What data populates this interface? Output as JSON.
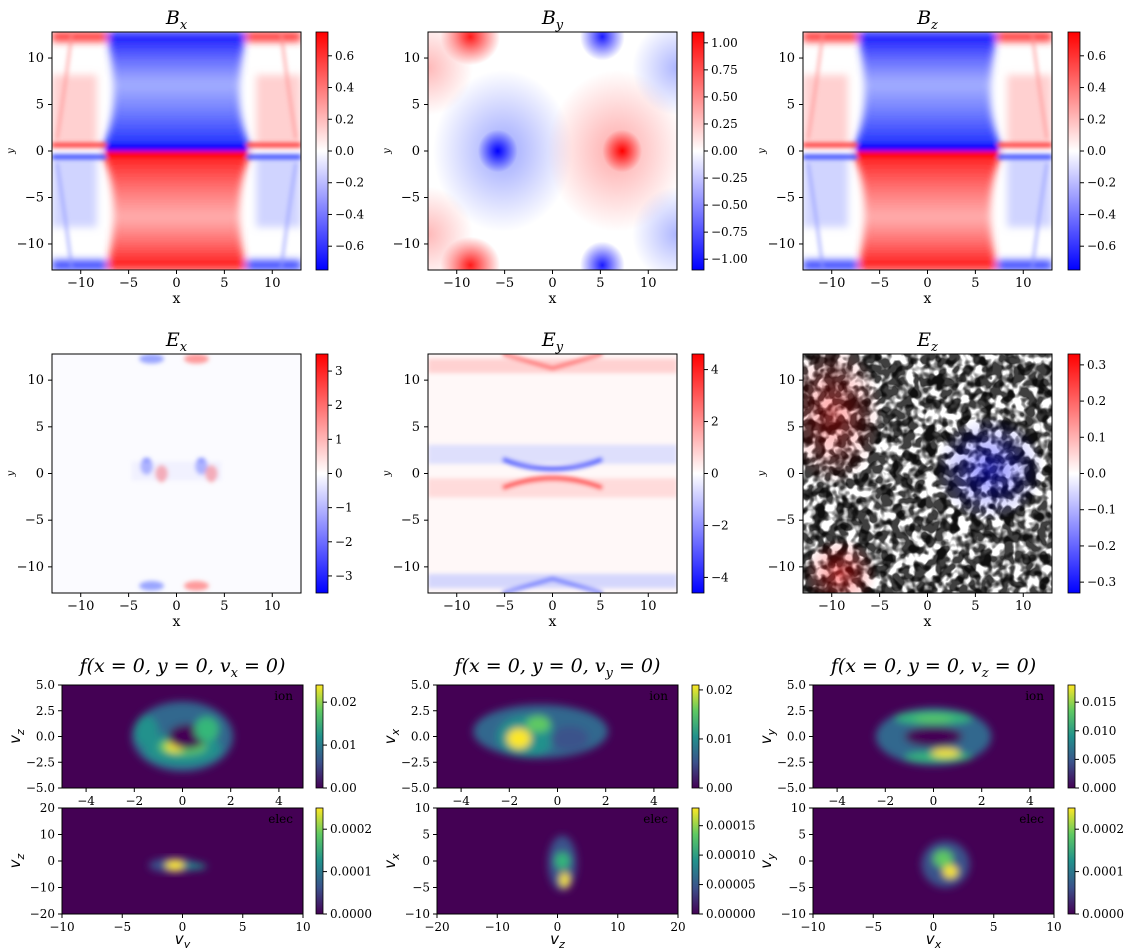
{
  "chart_data": [
    {
      "type": "heatmap",
      "title": "B_x",
      "title_display": "B",
      "title_sub": "x",
      "xlabel": "x",
      "ylabel": "y",
      "xlim": [
        -13,
        13
      ],
      "ylim": [
        -12.8,
        12.8
      ],
      "xticks": [
        "−10",
        "−5",
        "0",
        "5",
        "10"
      ],
      "yticks": [
        "10",
        "5",
        "0",
        "−5",
        "−10"
      ],
      "colorbar_ticks": [
        "0.6",
        "0.4",
        "0.2",
        "0.0",
        "−0.2",
        "−0.4",
        "−0.6"
      ],
      "vmin": -0.75,
      "vmax": 0.75,
      "colormap": "bwr"
    },
    {
      "type": "heatmap",
      "title": "B_y",
      "title_display": "B",
      "title_sub": "y",
      "xlabel": "x",
      "ylabel": "y",
      "xlim": [
        -13,
        13
      ],
      "ylim": [
        -12.8,
        12.8
      ],
      "xticks": [
        "−10",
        "−5",
        "0",
        "5",
        "10"
      ],
      "yticks": [
        "10",
        "5",
        "0",
        "−5",
        "−10"
      ],
      "colorbar_ticks": [
        "1.00",
        "0.75",
        "0.50",
        "0.25",
        "0.00",
        "−0.25",
        "−0.50",
        "−0.75",
        "−1.00"
      ],
      "vmin": -1.1,
      "vmax": 1.1,
      "colormap": "bwr"
    },
    {
      "type": "heatmap",
      "title": "B_z",
      "title_display": "B",
      "title_sub": "z",
      "xlabel": "x",
      "ylabel": "y",
      "xlim": [
        -13,
        13
      ],
      "ylim": [
        -12.8,
        12.8
      ],
      "xticks": [
        "−10",
        "−5",
        "0",
        "5",
        "10"
      ],
      "yticks": [
        "10",
        "5",
        "0",
        "−5",
        "−10"
      ],
      "colorbar_ticks": [
        "0.6",
        "0.4",
        "0.2",
        "0.0",
        "−0.2",
        "−0.4",
        "−0.6"
      ],
      "vmin": -0.75,
      "vmax": 0.75,
      "colormap": "bwr"
    },
    {
      "type": "heatmap",
      "title": "E_x",
      "title_display": "E",
      "title_sub": "x",
      "xlabel": "x",
      "ylabel": "y",
      "xlim": [
        -13,
        13
      ],
      "ylim": [
        -12.8,
        12.8
      ],
      "xticks": [
        "−10",
        "−5",
        "0",
        "5",
        "10"
      ],
      "yticks": [
        "10",
        "5",
        "0",
        "−5",
        "−10"
      ],
      "colorbar_ticks": [
        "3",
        "2",
        "1",
        "0",
        "−1",
        "−2",
        "−3"
      ],
      "vmin": -3.5,
      "vmax": 3.5,
      "colormap": "bwr"
    },
    {
      "type": "heatmap",
      "title": "E_y",
      "title_display": "E",
      "title_sub": "y",
      "xlabel": "x",
      "ylabel": "y",
      "xlim": [
        -13,
        13
      ],
      "ylim": [
        -12.8,
        12.8
      ],
      "xticks": [
        "−10",
        "−5",
        "0",
        "5",
        "10"
      ],
      "yticks": [
        "10",
        "5",
        "0",
        "−5",
        "−10"
      ],
      "colorbar_ticks": [
        "4",
        "2",
        "0",
        "−2",
        "−4"
      ],
      "vmin": -4.6,
      "vmax": 4.6,
      "colormap": "bwr"
    },
    {
      "type": "heatmap",
      "title": "E_z",
      "title_display": "E",
      "title_sub": "z",
      "xlabel": "x",
      "ylabel": "y",
      "xlim": [
        -13,
        13
      ],
      "ylim": [
        -12.8,
        12.8
      ],
      "xticks": [
        "−10",
        "−5",
        "0",
        "5",
        "10"
      ],
      "yticks": [
        "10",
        "5",
        "0",
        "−5",
        "−10"
      ],
      "colorbar_ticks": [
        "0.3",
        "0.2",
        "0.1",
        "0.0",
        "−0.1",
        "−0.2",
        "−0.3"
      ],
      "vmin": -0.33,
      "vmax": 0.33,
      "colormap": "bwr"
    },
    {
      "type": "heatmap",
      "title": "f(x = 0, y = 0, v_x = 0)",
      "title_display": "f(x = 0, y = 0, v",
      "title_sub": "x",
      "title_tail": " = 0)",
      "species": "ion",
      "xlabel": "",
      "ylabel": "v_z",
      "ylabel_display": "v",
      "ylabel_sub": "z",
      "xlim": [
        -5,
        5
      ],
      "ylim": [
        -5,
        5
      ],
      "xticks": [
        "−4",
        "−2",
        "0",
        "2",
        "4"
      ],
      "yticks": [
        "5.0",
        "2.5",
        "0.0",
        "−2.5",
        "−5.0"
      ],
      "colorbar_ticks": [
        "0.02",
        "0.01",
        "0.00"
      ],
      "vmin": 0,
      "vmax": 0.024,
      "colormap": "viridis"
    },
    {
      "type": "heatmap",
      "title": "f(x = 0, y = 0, v_y = 0)",
      "title_display": "f(x = 0, y = 0, v",
      "title_sub": "y",
      "title_tail": " = 0)",
      "species": "ion",
      "xlabel": "",
      "ylabel": "v_x",
      "ylabel_display": "v",
      "ylabel_sub": "x",
      "xlim": [
        -5,
        5
      ],
      "ylim": [
        -5,
        5
      ],
      "xticks": [
        "−4",
        "−2",
        "0",
        "2",
        "4"
      ],
      "yticks": [
        "5.0",
        "2.5",
        "0.0",
        "−2.5",
        "−5.0"
      ],
      "colorbar_ticks": [
        "0.02",
        "0.01",
        "0.00"
      ],
      "vmin": 0,
      "vmax": 0.021,
      "colormap": "viridis"
    },
    {
      "type": "heatmap",
      "title": "f(x = 0, y = 0, v_z = 0)",
      "title_display": "f(x = 0, y = 0, v",
      "title_sub": "z",
      "title_tail": " = 0)",
      "species": "ion",
      "xlabel": "",
      "ylabel": "v_y",
      "ylabel_display": "v",
      "ylabel_sub": "y",
      "xlim": [
        -5,
        5
      ],
      "ylim": [
        -5,
        5
      ],
      "xticks": [
        "−4",
        "−2",
        "0",
        "2",
        "4"
      ],
      "yticks": [
        "5.0",
        "2.5",
        "0.0",
        "−2.5",
        "−5.0"
      ],
      "colorbar_ticks": [
        "0.015",
        "0.010",
        "0.005",
        "0.000"
      ],
      "vmin": 0,
      "vmax": 0.018,
      "colormap": "viridis"
    },
    {
      "type": "heatmap",
      "species": "elec",
      "xlabel": "v_y",
      "xlabel_display": "v",
      "xlabel_sub": "y",
      "ylabel": "v_z",
      "ylabel_display": "v",
      "ylabel_sub": "z",
      "xlim": [
        -10,
        10
      ],
      "ylim": [
        -20,
        20
      ],
      "xticks": [
        "−10",
        "−5",
        "0",
        "5",
        "10"
      ],
      "yticks": [
        "20",
        "10",
        "0",
        "−10",
        "−20"
      ],
      "colorbar_ticks": [
        "0.0002",
        "0.0001",
        "0.0000"
      ],
      "vmin": 0,
      "vmax": 0.00025,
      "colormap": "viridis"
    },
    {
      "type": "heatmap",
      "species": "elec",
      "xlabel": "v_z",
      "xlabel_display": "v",
      "xlabel_sub": "z",
      "ylabel": "v_x",
      "ylabel_display": "v",
      "ylabel_sub": "x",
      "xlim": [
        -20,
        20
      ],
      "ylim": [
        -10,
        10
      ],
      "xticks": [
        "−20",
        "−10",
        "0",
        "10",
        "20"
      ],
      "yticks": [
        "10",
        "5",
        "0",
        "−5",
        "−10"
      ],
      "colorbar_ticks": [
        "0.00015",
        "0.00010",
        "0.00005",
        "0.00000"
      ],
      "vmin": 0,
      "vmax": 0.00018,
      "colormap": "viridis"
    },
    {
      "type": "heatmap",
      "species": "elec",
      "xlabel": "v_x",
      "xlabel_display": "v",
      "xlabel_sub": "x",
      "ylabel": "v_y",
      "ylabel_display": "v",
      "ylabel_sub": "y",
      "xlim": [
        -10,
        10
      ],
      "ylim": [
        -10,
        10
      ],
      "xticks": [
        "−10",
        "−5",
        "0",
        "5",
        "10"
      ],
      "yticks": [
        "10",
        "5",
        "0",
        "−5",
        "−10"
      ],
      "colorbar_ticks": [
        "0.0002",
        "0.0001",
        "0.0000"
      ],
      "vmin": 0,
      "vmax": 0.00025,
      "colormap": "viridis"
    }
  ],
  "colors": {
    "bwr_low": "#0000ff",
    "bwr_mid": "#ffffff",
    "bwr_high": "#ff0000",
    "viridis_low": "#440154",
    "viridis_high": "#fde725"
  }
}
